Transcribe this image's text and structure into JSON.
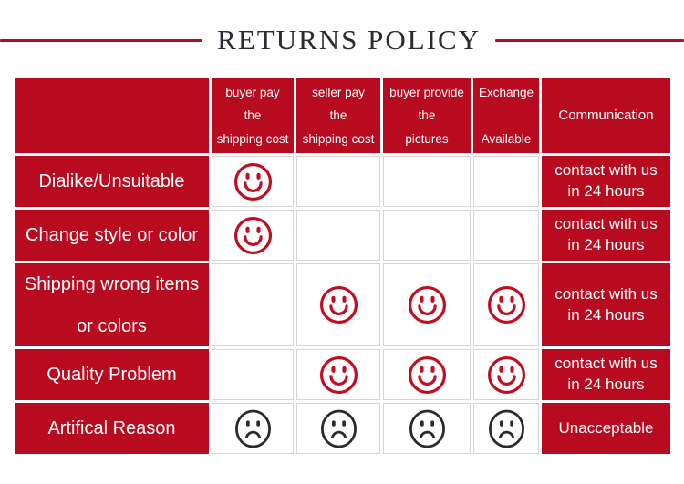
{
  "title": "RETURNS POLICY",
  "colors": {
    "red": "#b80b1f",
    "line_red": "#b00e24",
    "smiley_red": "#c00d1f",
    "sad_dark": "#2b2b2b",
    "title_text": "#2b2b36",
    "grid_line": "#d6d6d6"
  },
  "table": {
    "columns": [
      "",
      "buyer pay\nthe\nshipping cost",
      "seller pay\nthe\nshipping cost",
      "buyer provide\nthe\npictures",
      "Exchange\n\nAvailable",
      "Communication"
    ],
    "rows": [
      {
        "label": "Dialike/Unsuitable",
        "cells": [
          "happy",
          "",
          "",
          ""
        ],
        "communication": "contact with us\nin 24 hours"
      },
      {
        "label": "Change style or color",
        "cells": [
          "happy",
          "",
          "",
          ""
        ],
        "communication": "contact with us\nin 24 hours"
      },
      {
        "label": "Shipping wrong items\nor colors",
        "cells": [
          "",
          "happy",
          "happy",
          "happy"
        ],
        "communication": "contact with us\nin 24 hours"
      },
      {
        "label": "Quality Problem",
        "cells": [
          "",
          "happy",
          "happy",
          "happy"
        ],
        "communication": "contact with us\nin 24 hours"
      },
      {
        "label": "Artifical Reason",
        "cells": [
          "sad",
          "sad",
          "sad",
          "sad"
        ],
        "communication": "Unacceptable"
      }
    ]
  }
}
